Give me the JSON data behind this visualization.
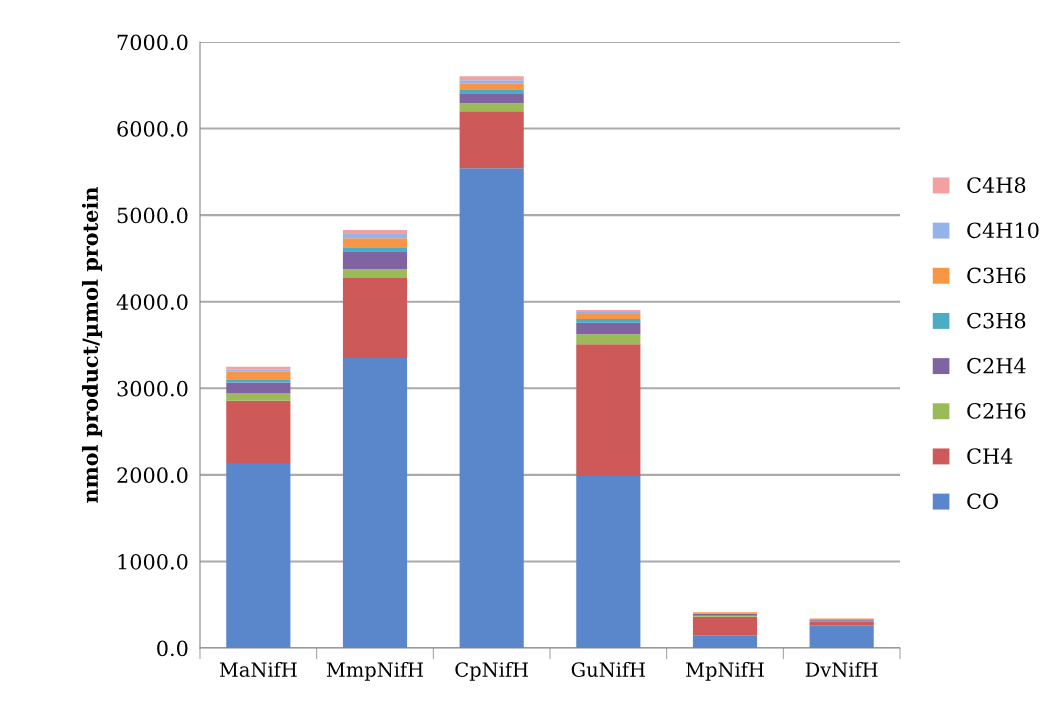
{
  "chart_data": {
    "type": "bar",
    "stacked": true,
    "ylabel": "nmol product/µmol protein",
    "categories": [
      "MaNifH",
      "MmpNifH",
      "CpNifH",
      "GuNifH",
      "MpNifH",
      "DvNifH"
    ],
    "ylim": [
      0,
      7000
    ],
    "yticks": [
      {
        "value": 0,
        "label": "0.0"
      },
      {
        "value": 1000,
        "label": "1000.0"
      },
      {
        "value": 2000,
        "label": "2000.0"
      },
      {
        "value": 3000,
        "label": "3000.0"
      },
      {
        "value": 4000,
        "label": "4000.0"
      },
      {
        "value": 5000,
        "label": "5000.0"
      },
      {
        "value": 6000,
        "label": "6000.0"
      },
      {
        "value": 7000,
        "label": "7000.0"
      }
    ],
    "grid": "y",
    "legend": "right",
    "series": [
      {
        "name": "CO",
        "color": "#5a86cc",
        "values": [
          2136,
          3349,
          5543,
          1986,
          147,
          262
        ]
      },
      {
        "name": "CH4",
        "color": "#cd5a58",
        "values": [
          720,
          924,
          658,
          1524,
          214,
          47
        ]
      },
      {
        "name": "C2H6",
        "color": "#9bbb59",
        "values": [
          85,
          103,
          92,
          113,
          12,
          5
        ]
      },
      {
        "name": "C2H4",
        "color": "#8064a2",
        "values": [
          127,
          208,
          116,
          134,
          23,
          8
        ]
      },
      {
        "name": "C3H8",
        "color": "#4bacc6",
        "values": [
          35,
          46,
          46,
          42,
          6,
          null
        ]
      },
      {
        "name": "C3H6",
        "color": "#f79646",
        "values": [
          88,
          104,
          69,
          58,
          12,
          18
        ]
      },
      {
        "name": "C4H10",
        "color": "#95b3e8",
        "values": [
          27,
          47,
          35,
          23,
          null,
          null
        ]
      },
      {
        "name": "C4H8",
        "color": "#f2a0a0",
        "values": [
          30,
          46,
          46,
          23,
          null,
          null
        ]
      }
    ]
  }
}
